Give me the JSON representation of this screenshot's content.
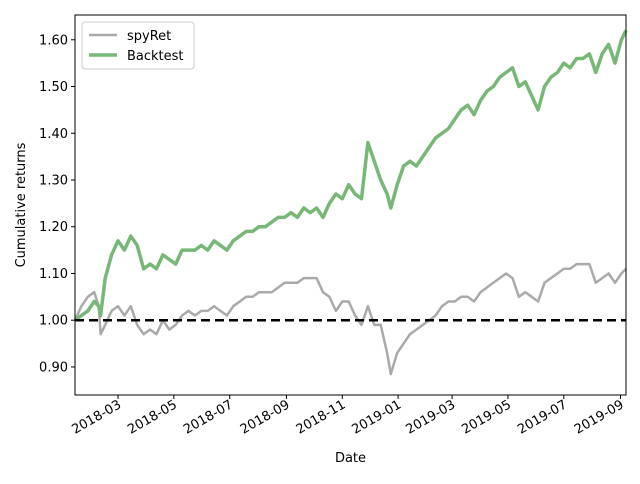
{
  "chart_data": {
    "type": "line",
    "xlabel": "Date",
    "ylabel": "Cumulative returns",
    "x_ticks": [
      "2018-03",
      "2018-05",
      "2018-07",
      "2018-09",
      "2018-11",
      "2019-01",
      "2019-03",
      "2019-05",
      "2019-07",
      "2019-09"
    ],
    "y_ticks": [
      "0.90",
      "1.00",
      "1.10",
      "1.20",
      "1.30",
      "1.40",
      "1.50",
      "1.60"
    ],
    "xlim": [
      "2018-01-13",
      "2019-09-07"
    ],
    "ylim": [
      0.84,
      1.653
    ],
    "grid": false,
    "legend_position": "upper-left",
    "reference_line": {
      "y": 1.0,
      "style": "dashed",
      "color": "#000000"
    },
    "series": [
      {
        "name": "spyRet",
        "color": "#aaaaaa",
        "points": [
          [
            "2018-01-13",
            1.0
          ],
          [
            "2018-01-20",
            1.03
          ],
          [
            "2018-01-27",
            1.05
          ],
          [
            "2018-02-03",
            1.06
          ],
          [
            "2018-02-08",
            1.03
          ],
          [
            "2018-02-10",
            0.97
          ],
          [
            "2018-02-15",
            0.99
          ],
          [
            "2018-02-22",
            1.02
          ],
          [
            "2018-03-01",
            1.03
          ],
          [
            "2018-03-08",
            1.01
          ],
          [
            "2018-03-15",
            1.03
          ],
          [
            "2018-03-22",
            0.99
          ],
          [
            "2018-03-29",
            0.97
          ],
          [
            "2018-04-05",
            0.98
          ],
          [
            "2018-04-12",
            0.97
          ],
          [
            "2018-04-19",
            1.0
          ],
          [
            "2018-04-26",
            0.98
          ],
          [
            "2018-05-03",
            0.99
          ],
          [
            "2018-05-10",
            1.01
          ],
          [
            "2018-05-17",
            1.02
          ],
          [
            "2018-05-24",
            1.01
          ],
          [
            "2018-05-31",
            1.02
          ],
          [
            "2018-06-07",
            1.02
          ],
          [
            "2018-06-14",
            1.03
          ],
          [
            "2018-06-21",
            1.02
          ],
          [
            "2018-06-28",
            1.01
          ],
          [
            "2018-07-05",
            1.03
          ],
          [
            "2018-07-12",
            1.04
          ],
          [
            "2018-07-19",
            1.05
          ],
          [
            "2018-07-26",
            1.05
          ],
          [
            "2018-08-02",
            1.06
          ],
          [
            "2018-08-09",
            1.06
          ],
          [
            "2018-08-16",
            1.06
          ],
          [
            "2018-08-23",
            1.07
          ],
          [
            "2018-08-30",
            1.08
          ],
          [
            "2018-09-06",
            1.08
          ],
          [
            "2018-09-13",
            1.08
          ],
          [
            "2018-09-20",
            1.09
          ],
          [
            "2018-09-27",
            1.09
          ],
          [
            "2018-10-04",
            1.09
          ],
          [
            "2018-10-11",
            1.06
          ],
          [
            "2018-10-18",
            1.05
          ],
          [
            "2018-10-25",
            1.02
          ],
          [
            "2018-11-01",
            1.04
          ],
          [
            "2018-11-08",
            1.04
          ],
          [
            "2018-11-15",
            1.01
          ],
          [
            "2018-11-22",
            0.99
          ],
          [
            "2018-11-29",
            1.03
          ],
          [
            "2018-12-06",
            0.99
          ],
          [
            "2018-12-13",
            0.99
          ],
          [
            "2018-12-20",
            0.93
          ],
          [
            "2018-12-24",
            0.885
          ],
          [
            "2018-12-31",
            0.93
          ],
          [
            "2019-01-07",
            0.95
          ],
          [
            "2019-01-14",
            0.97
          ],
          [
            "2019-01-21",
            0.98
          ],
          [
            "2019-01-28",
            0.99
          ],
          [
            "2019-02-04",
            1.0
          ],
          [
            "2019-02-11",
            1.01
          ],
          [
            "2019-02-18",
            1.03
          ],
          [
            "2019-02-25",
            1.04
          ],
          [
            "2019-03-04",
            1.04
          ],
          [
            "2019-03-11",
            1.05
          ],
          [
            "2019-03-18",
            1.05
          ],
          [
            "2019-03-25",
            1.04
          ],
          [
            "2019-04-01",
            1.06
          ],
          [
            "2019-04-08",
            1.07
          ],
          [
            "2019-04-15",
            1.08
          ],
          [
            "2019-04-22",
            1.09
          ],
          [
            "2019-04-29",
            1.1
          ],
          [
            "2019-05-06",
            1.09
          ],
          [
            "2019-05-13",
            1.05
          ],
          [
            "2019-05-20",
            1.06
          ],
          [
            "2019-05-27",
            1.05
          ],
          [
            "2019-06-03",
            1.04
          ],
          [
            "2019-06-10",
            1.08
          ],
          [
            "2019-06-17",
            1.09
          ],
          [
            "2019-06-24",
            1.1
          ],
          [
            "2019-07-01",
            1.11
          ],
          [
            "2019-07-08",
            1.11
          ],
          [
            "2019-07-15",
            1.12
          ],
          [
            "2019-07-22",
            1.12
          ],
          [
            "2019-07-29",
            1.12
          ],
          [
            "2019-08-05",
            1.08
          ],
          [
            "2019-08-12",
            1.09
          ],
          [
            "2019-08-19",
            1.1
          ],
          [
            "2019-08-26",
            1.08
          ],
          [
            "2019-09-02",
            1.1
          ],
          [
            "2019-09-07",
            1.11
          ]
        ]
      },
      {
        "name": "Backtest",
        "color": "#77b877",
        "points": [
          [
            "2018-01-13",
            1.0
          ],
          [
            "2018-01-20",
            1.01
          ],
          [
            "2018-01-27",
            1.02
          ],
          [
            "2018-02-03",
            1.04
          ],
          [
            "2018-02-08",
            1.03
          ],
          [
            "2018-02-10",
            1.01
          ],
          [
            "2018-02-15",
            1.09
          ],
          [
            "2018-02-22",
            1.14
          ],
          [
            "2018-03-01",
            1.17
          ],
          [
            "2018-03-08",
            1.15
          ],
          [
            "2018-03-15",
            1.18
          ],
          [
            "2018-03-22",
            1.16
          ],
          [
            "2018-03-29",
            1.11
          ],
          [
            "2018-04-05",
            1.12
          ],
          [
            "2018-04-12",
            1.11
          ],
          [
            "2018-04-19",
            1.14
          ],
          [
            "2018-04-26",
            1.13
          ],
          [
            "2018-05-03",
            1.12
          ],
          [
            "2018-05-10",
            1.15
          ],
          [
            "2018-05-17",
            1.15
          ],
          [
            "2018-05-24",
            1.15
          ],
          [
            "2018-05-31",
            1.16
          ],
          [
            "2018-06-07",
            1.15
          ],
          [
            "2018-06-14",
            1.17
          ],
          [
            "2018-06-21",
            1.16
          ],
          [
            "2018-06-28",
            1.15
          ],
          [
            "2018-07-05",
            1.17
          ],
          [
            "2018-07-12",
            1.18
          ],
          [
            "2018-07-19",
            1.19
          ],
          [
            "2018-07-26",
            1.19
          ],
          [
            "2018-08-02",
            1.2
          ],
          [
            "2018-08-09",
            1.2
          ],
          [
            "2018-08-16",
            1.21
          ],
          [
            "2018-08-23",
            1.22
          ],
          [
            "2018-08-30",
            1.22
          ],
          [
            "2018-09-06",
            1.23
          ],
          [
            "2018-09-13",
            1.22
          ],
          [
            "2018-09-20",
            1.24
          ],
          [
            "2018-09-27",
            1.23
          ],
          [
            "2018-10-04",
            1.24
          ],
          [
            "2018-10-11",
            1.22
          ],
          [
            "2018-10-18",
            1.25
          ],
          [
            "2018-10-25",
            1.27
          ],
          [
            "2018-11-01",
            1.26
          ],
          [
            "2018-11-08",
            1.29
          ],
          [
            "2018-11-15",
            1.27
          ],
          [
            "2018-11-22",
            1.26
          ],
          [
            "2018-11-29",
            1.38
          ],
          [
            "2018-12-06",
            1.34
          ],
          [
            "2018-12-13",
            1.3
          ],
          [
            "2018-12-20",
            1.27
          ],
          [
            "2018-12-24",
            1.24
          ],
          [
            "2018-12-31",
            1.29
          ],
          [
            "2019-01-07",
            1.33
          ],
          [
            "2019-01-14",
            1.34
          ],
          [
            "2019-01-21",
            1.33
          ],
          [
            "2019-01-28",
            1.35
          ],
          [
            "2019-02-04",
            1.37
          ],
          [
            "2019-02-11",
            1.39
          ],
          [
            "2019-02-18",
            1.4
          ],
          [
            "2019-02-25",
            1.41
          ],
          [
            "2019-03-04",
            1.43
          ],
          [
            "2019-03-11",
            1.45
          ],
          [
            "2019-03-18",
            1.46
          ],
          [
            "2019-03-25",
            1.44
          ],
          [
            "2019-04-01",
            1.47
          ],
          [
            "2019-04-08",
            1.49
          ],
          [
            "2019-04-15",
            1.5
          ],
          [
            "2019-04-22",
            1.52
          ],
          [
            "2019-04-29",
            1.53
          ],
          [
            "2019-05-06",
            1.54
          ],
          [
            "2019-05-13",
            1.5
          ],
          [
            "2019-05-20",
            1.51
          ],
          [
            "2019-05-27",
            1.48
          ],
          [
            "2019-06-03",
            1.45
          ],
          [
            "2019-06-10",
            1.5
          ],
          [
            "2019-06-17",
            1.52
          ],
          [
            "2019-06-24",
            1.53
          ],
          [
            "2019-07-01",
            1.55
          ],
          [
            "2019-07-08",
            1.54
          ],
          [
            "2019-07-15",
            1.56
          ],
          [
            "2019-07-22",
            1.56
          ],
          [
            "2019-07-29",
            1.57
          ],
          [
            "2019-08-05",
            1.53
          ],
          [
            "2019-08-12",
            1.57
          ],
          [
            "2019-08-19",
            1.59
          ],
          [
            "2019-08-26",
            1.55
          ],
          [
            "2019-09-02",
            1.6
          ],
          [
            "2019-09-07",
            1.62
          ]
        ]
      }
    ]
  }
}
